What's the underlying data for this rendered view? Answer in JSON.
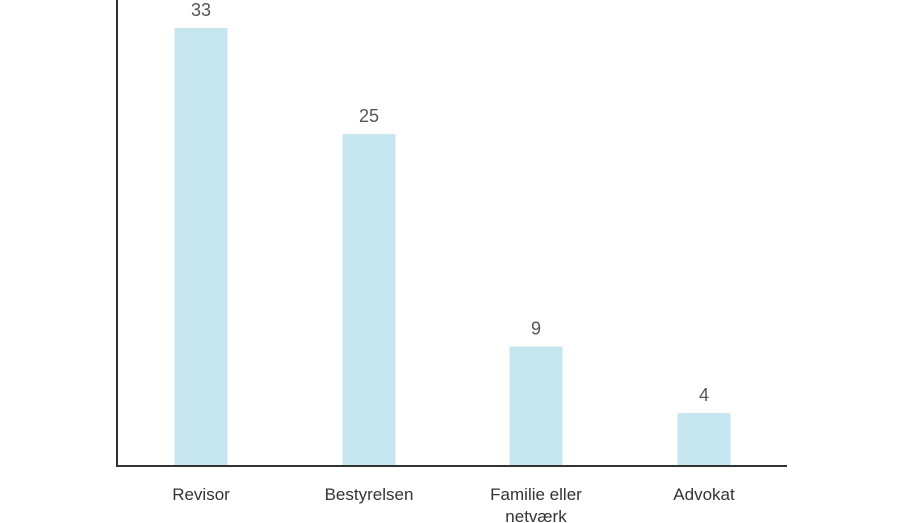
{
  "chart_data": {
    "type": "bar",
    "categories": [
      "Revisor",
      "Bestyrelsen",
      "Familie eller netværk",
      "Advokat"
    ],
    "category_lines": [
      [
        "Revisor"
      ],
      [
        "Bestyrelsen"
      ],
      [
        "Familie eller",
        "netværk"
      ],
      [
        "Advokat"
      ]
    ],
    "values": [
      33,
      25,
      9,
      4
    ],
    "value_labels": [
      "33",
      "25",
      "9",
      "4"
    ],
    "bar_color": "#c5e6ef",
    "axis_color": "#333333",
    "ylim": [
      0,
      33
    ],
    "grid": false,
    "legend": "none"
  }
}
